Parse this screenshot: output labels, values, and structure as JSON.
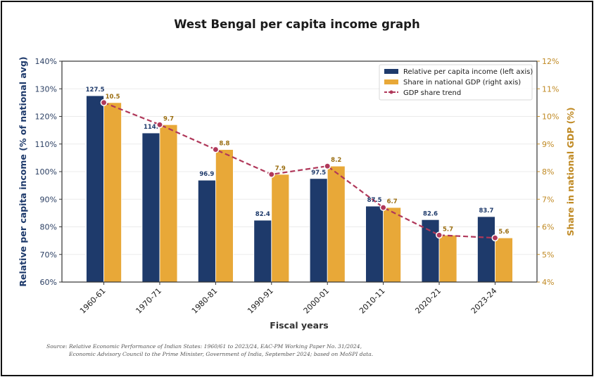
{
  "chart_data": {
    "type": "bar",
    "title": "West Bengal per capita income graph",
    "xlabel": "Fiscal years",
    "ylabel_left": "Relative per capita income (% of national avg)",
    "ylabel_right": "Share in national GDP (%)",
    "categories": [
      "1960-61",
      "1970-71",
      "1980-81",
      "1990-91",
      "2000-01",
      "2010-11",
      "2020-21",
      "2023-24"
    ],
    "series": [
      {
        "name": "Relative per capita income (left axis)",
        "axis": "left",
        "type": "bar",
        "color": "#1e3a6b",
        "values": [
          127.5,
          114.0,
          96.9,
          82.4,
          97.5,
          87.5,
          82.6,
          83.7
        ],
        "labels": [
          "127.5",
          "114.",
          "96.9",
          "82.4",
          "97.5",
          "87.5",
          "82.6",
          "83.7"
        ]
      },
      {
        "name": "Share in national GDP (right axis)",
        "axis": "right",
        "type": "bar",
        "color": "#e8a838",
        "values": [
          10.5,
          9.7,
          8.8,
          7.9,
          8.2,
          6.7,
          5.7,
          5.6
        ],
        "labels": [
          "10.5",
          "9.7",
          "8.8",
          "7.9",
          "8.2",
          "6.7",
          "5.7",
          "5.6"
        ]
      },
      {
        "name": "GDP share trend",
        "axis": "right",
        "type": "line",
        "style": "dashed",
        "marker": "circle",
        "color": "#b0385a",
        "values": [
          10.5,
          9.7,
          8.8,
          7.9,
          8.2,
          6.7,
          5.7,
          5.6
        ]
      }
    ],
    "ylim_left": [
      60,
      140
    ],
    "yticks_left": [
      "60%",
      "70%",
      "80%",
      "90%",
      "100%",
      "110%",
      "120%",
      "130%",
      "140%"
    ],
    "ylim_right": [
      4,
      12
    ],
    "yticks_right": [
      "4%",
      "5%",
      "6%",
      "7%",
      "8%",
      "9%",
      "10%",
      "11%",
      "12%"
    ],
    "grid": "horizontal",
    "legend_position": "top-right",
    "colors": {
      "left_axis": "#2b3f63",
      "right_axis": "#c08a24",
      "left_label_text": "#1e3a6b",
      "right_label_text": "#9a6d10"
    },
    "source_lines": [
      "Source: Relative Economic Performance of Indian States: 1960/61 to 2023/24, EAC-PM Working Paper No. 31/2024,",
      "Economic Advisory Council to the Prime Minister, Government of India, September 2024; based on MoSPI data."
    ]
  }
}
